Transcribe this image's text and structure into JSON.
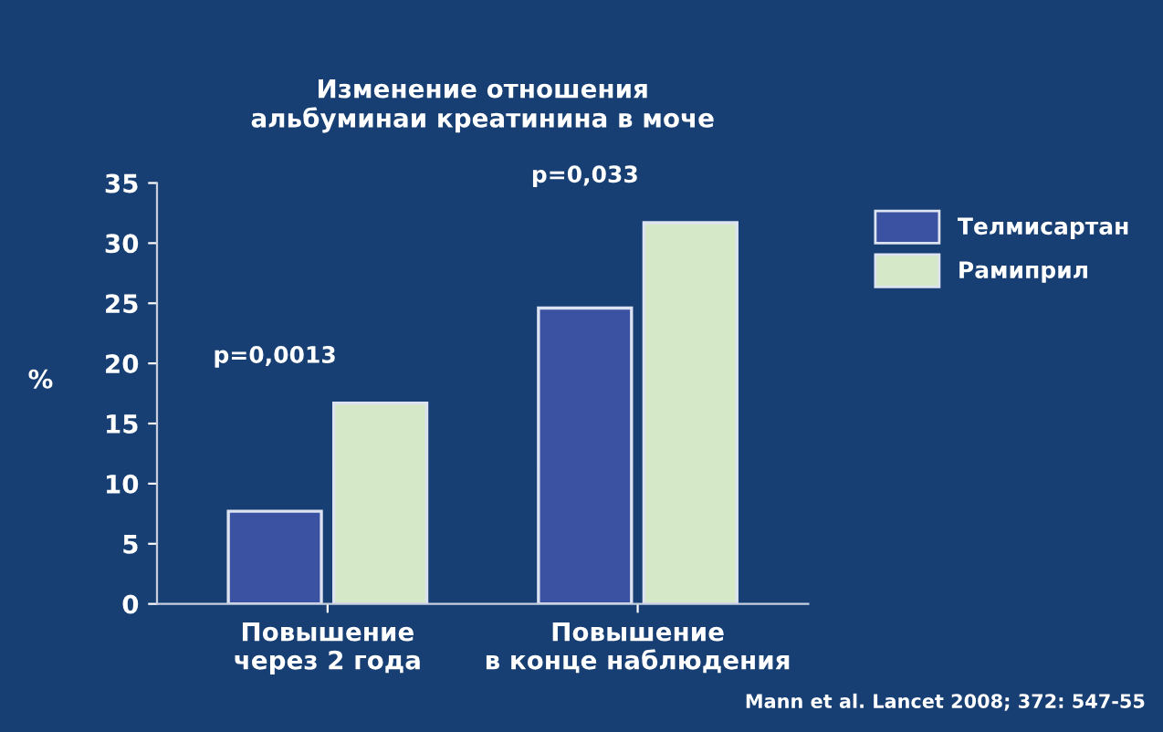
{
  "chart_data": {
    "type": "bar",
    "title": "Изменение отношения\nальбуминаи креатинина в моче",
    "ylabel": "%",
    "categories": [
      "Повышение\nчерез 2 года",
      "Повышение\nв конце наблюдения"
    ],
    "series": [
      {
        "name": "Телмисартан",
        "color": "#3b52a3",
        "values": [
          7.7,
          24.6
        ]
      },
      {
        "name": "Рамиприл",
        "color": "#d5e8c8",
        "values": [
          16.7,
          31.7
        ]
      }
    ],
    "ylim": [
      0,
      35
    ],
    "yticks": [
      0,
      5,
      10,
      15,
      20,
      25,
      30,
      35
    ],
    "grid": false,
    "legend": "top right",
    "annotations": [
      "p=0,0013",
      "p=0,033",
      "Mann et al. Lancet 2008; 372: 547-55"
    ]
  }
}
